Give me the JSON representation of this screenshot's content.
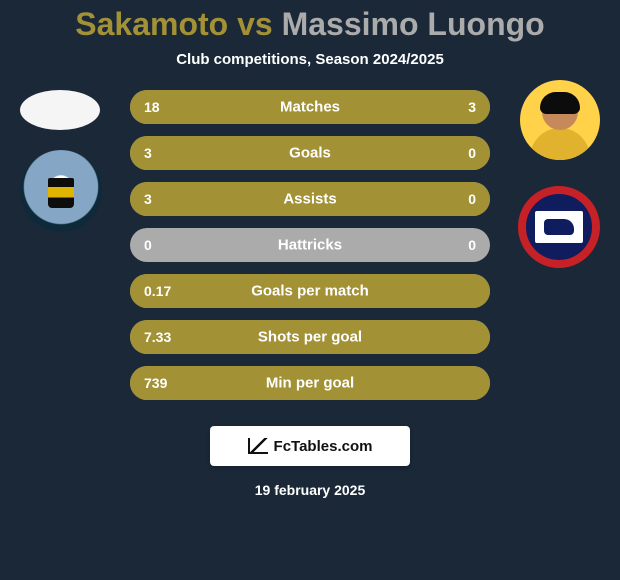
{
  "colors": {
    "background": "#1a2838",
    "bar_fill": "#a39135",
    "bar_track": "#ababab",
    "player1_text": "#a39135",
    "player2_text": "#ababab",
    "white": "#ffffff",
    "footer_text": "#111111"
  },
  "title": {
    "player1": "Sakamoto",
    "vs": " vs ",
    "player2": "Massimo Luongo",
    "fontsize": 32
  },
  "subtitle": "Club competitions, Season 2024/2025",
  "bars": {
    "height": 34,
    "gap": 12,
    "max_width": 360,
    "rows": [
      {
        "label": "Matches",
        "left": "18",
        "right": "3",
        "left_pct": 85.7,
        "right_pct": 14.3
      },
      {
        "label": "Goals",
        "left": "3",
        "right": "0",
        "left_pct": 100,
        "right_pct": 0
      },
      {
        "label": "Assists",
        "left": "3",
        "right": "0",
        "left_pct": 100,
        "right_pct": 0
      },
      {
        "label": "Hattricks",
        "left": "0",
        "right": "0",
        "left_pct": 0,
        "right_pct": 0
      },
      {
        "label": "Goals per match",
        "left": "0.17",
        "right": "",
        "left_pct": 100,
        "right_pct": 0
      },
      {
        "label": "Shots per goal",
        "left": "7.33",
        "right": "",
        "left_pct": 100,
        "right_pct": 0
      },
      {
        "label": "Min per goal",
        "left": "739",
        "right": "",
        "left_pct": 100,
        "right_pct": 0
      }
    ]
  },
  "footer": {
    "logo_text": "FcTables.com",
    "date": "19 february 2025"
  }
}
